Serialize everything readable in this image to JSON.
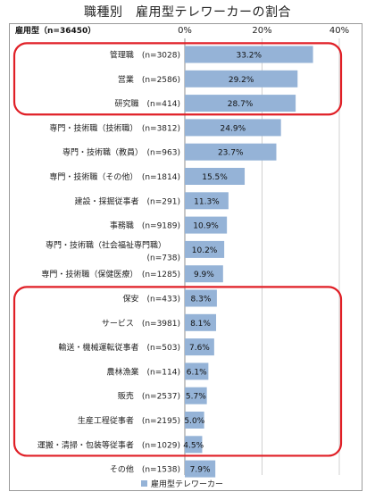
{
  "chart_data": {
    "type": "bar",
    "orientation": "horizontal",
    "title": "職種別　雇用型テレワーカーの割合",
    "header_label": "雇用型（n=36450）",
    "xlim": [
      0,
      40
    ],
    "x_ticks": [
      "0%",
      "20%",
      "40%"
    ],
    "grid": true,
    "legend_position": "bottom",
    "series": [
      {
        "name": "雇用型テレワーカー",
        "color": "#95b3d7",
        "values": [
          33.2,
          29.2,
          28.7,
          24.9,
          23.7,
          15.5,
          11.3,
          10.9,
          10.2,
          9.9,
          8.3,
          8.1,
          7.6,
          6.1,
          5.7,
          5.0,
          4.5,
          7.9
        ]
      }
    ],
    "value_labels": [
      "33.2%",
      "29.2%",
      "28.7%",
      "24.9%",
      "23.7%",
      "15.5%",
      "11.3%",
      "10.9%",
      "10.2%",
      "9.9%",
      "8.3%",
      "8.1%",
      "7.6%",
      "6.1%",
      "5.7%",
      "5.0%",
      "4.5%",
      "7.9%"
    ],
    "categories": [
      "管理職　(n=3028)",
      "営業　(n=2586)",
      "研究職　(n=414)",
      "専門・技術職（技術職）　(n=3812)",
      "専門・技術職（教員）　(n=963)",
      "専門・技術職（その他）　(n=1814)",
      "建設・採掘従事者　(n=291)",
      "事務職　(n=9189)",
      "専門・技術職（社会福祉専門職）|(n=738)",
      "専門・技術職（保健医療）　(n=1285)",
      "保安　(n=433)",
      "サービス　(n=3981)",
      "輸送・機械運転従事者　(n=503)",
      "農林漁業　(n=114)",
      "販売　(n=2537)",
      "生産工程従事者　(n=2195)",
      "運搬・清掃・包装等従事者　(n=1029)",
      "その他　(n=1538)"
    ],
    "highlight_groups": [
      {
        "from": 0,
        "to": 2,
        "color": "#e01f26"
      },
      {
        "from": 10,
        "to": 16,
        "color": "#e01f26"
      }
    ]
  }
}
